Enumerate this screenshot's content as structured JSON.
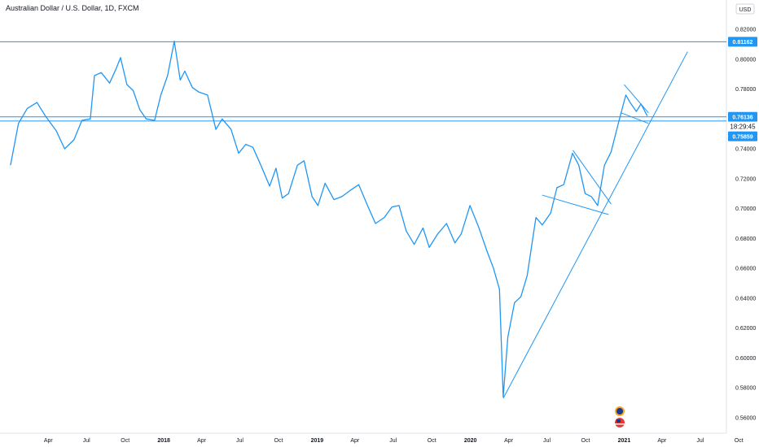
{
  "chart_data": {
    "type": "line",
    "title": "Australian Dollar / U.S. Dollar, 1D, FXCM",
    "currency": "USD",
    "colors": {
      "line": "#2196f3",
      "badge": "#2196f3",
      "axis_text": "#131722",
      "grid": "#e0e3eb"
    },
    "y_ticks": [
      "0.82000",
      "0.80000",
      "0.78000",
      "0.76000",
      "0.74000",
      "0.72000",
      "0.70000",
      "0.68000",
      "0.66000",
      "0.64000",
      "0.62000",
      "0.60000",
      "0.58000",
      "0.56000"
    ],
    "x_ticks": [
      {
        "label": "Apr",
        "x": "2017-04-01"
      },
      {
        "label": "Jul",
        "x": "2017-07-01"
      },
      {
        "label": "Oct",
        "x": "2017-10-01"
      },
      {
        "label": "2018",
        "x": "2018-01-01"
      },
      {
        "label": "Apr",
        "x": "2018-04-01"
      },
      {
        "label": "Jul",
        "x": "2018-07-01"
      },
      {
        "label": "Oct",
        "x": "2018-10-01"
      },
      {
        "label": "2019",
        "x": "2019-01-01"
      },
      {
        "label": "Apr",
        "x": "2019-04-01"
      },
      {
        "label": "Jul",
        "x": "2019-07-01"
      },
      {
        "label": "Oct",
        "x": "2019-10-01"
      },
      {
        "label": "2020",
        "x": "2020-01-01"
      },
      {
        "label": "Apr",
        "x": "2020-04-01"
      },
      {
        "label": "Jul",
        "x": "2020-07-01"
      },
      {
        "label": "Oct",
        "x": "2020-10-01"
      },
      {
        "label": "2021",
        "x": "2021-01-01"
      },
      {
        "label": "Apr",
        "x": "2021-04-01"
      },
      {
        "label": "Jul",
        "x": "2021-07-01"
      },
      {
        "label": "Oct",
        "x": "2021-10-01"
      }
    ],
    "ylim": [
      0.558,
      0.825
    ],
    "series": [
      {
        "values": [
          [
            "2017-01-01",
            0.729
          ],
          [
            "2017-01-20",
            0.757
          ],
          [
            "2017-02-10",
            0.767
          ],
          [
            "2017-03-05",
            0.771
          ],
          [
            "2017-03-25",
            0.762
          ],
          [
            "2017-04-20",
            0.752
          ],
          [
            "2017-05-10",
            0.74
          ],
          [
            "2017-06-01",
            0.746
          ],
          [
            "2017-06-20",
            0.759
          ],
          [
            "2017-07-10",
            0.76
          ],
          [
            "2017-07-20",
            0.789
          ],
          [
            "2017-08-05",
            0.791
          ],
          [
            "2017-08-25",
            0.784
          ],
          [
            "2017-09-10",
            0.794
          ],
          [
            "2017-09-20",
            0.801
          ],
          [
            "2017-10-05",
            0.783
          ],
          [
            "2017-10-20",
            0.779
          ],
          [
            "2017-11-05",
            0.766
          ],
          [
            "2017-11-20",
            0.76
          ],
          [
            "2017-12-10",
            0.759
          ],
          [
            "2017-12-25",
            0.776
          ],
          [
            "2018-01-10",
            0.789
          ],
          [
            "2018-01-26",
            0.812
          ],
          [
            "2018-02-09",
            0.786
          ],
          [
            "2018-02-20",
            0.792
          ],
          [
            "2018-03-10",
            0.781
          ],
          [
            "2018-03-25",
            0.778
          ],
          [
            "2018-04-15",
            0.776
          ],
          [
            "2018-05-05",
            0.753
          ],
          [
            "2018-05-20",
            0.76
          ],
          [
            "2018-06-10",
            0.753
          ],
          [
            "2018-06-28",
            0.737
          ],
          [
            "2018-07-15",
            0.743
          ],
          [
            "2018-08-01",
            0.741
          ],
          [
            "2018-08-20",
            0.729
          ],
          [
            "2018-09-10",
            0.715
          ],
          [
            "2018-09-25",
            0.727
          ],
          [
            "2018-10-10",
            0.707
          ],
          [
            "2018-10-25",
            0.71
          ],
          [
            "2018-11-15",
            0.729
          ],
          [
            "2018-12-01",
            0.732
          ],
          [
            "2018-12-20",
            0.708
          ],
          [
            "2019-01-03",
            0.702
          ],
          [
            "2019-01-20",
            0.717
          ],
          [
            "2019-02-10",
            0.706
          ],
          [
            "2019-03-01",
            0.708
          ],
          [
            "2019-03-20",
            0.712
          ],
          [
            "2019-04-10",
            0.716
          ],
          [
            "2019-05-01",
            0.702
          ],
          [
            "2019-05-20",
            0.69
          ],
          [
            "2019-06-10",
            0.694
          ],
          [
            "2019-06-28",
            0.701
          ],
          [
            "2019-07-15",
            0.702
          ],
          [
            "2019-08-01",
            0.685
          ],
          [
            "2019-08-20",
            0.676
          ],
          [
            "2019-09-10",
            0.687
          ],
          [
            "2019-09-25",
            0.674
          ],
          [
            "2019-10-15",
            0.683
          ],
          [
            "2019-11-05",
            0.69
          ],
          [
            "2019-11-25",
            0.677
          ],
          [
            "2019-12-10",
            0.683
          ],
          [
            "2019-12-31",
            0.702
          ],
          [
            "2020-01-20",
            0.688
          ],
          [
            "2020-02-10",
            0.671
          ],
          [
            "2020-02-25",
            0.66
          ],
          [
            "2020-03-10",
            0.646
          ],
          [
            "2020-03-19",
            0.574
          ],
          [
            "2020-03-30",
            0.614
          ],
          [
            "2020-04-15",
            0.637
          ],
          [
            "2020-04-30",
            0.641
          ],
          [
            "2020-05-15",
            0.655
          ],
          [
            "2020-06-05",
            0.694
          ],
          [
            "2020-06-20",
            0.689
          ],
          [
            "2020-07-10",
            0.697
          ],
          [
            "2020-07-25",
            0.714
          ],
          [
            "2020-08-10",
            0.716
          ],
          [
            "2020-08-31",
            0.737
          ],
          [
            "2020-09-15",
            0.729
          ],
          [
            "2020-09-30",
            0.71
          ],
          [
            "2020-10-15",
            0.708
          ],
          [
            "2020-10-30",
            0.702
          ],
          [
            "2020-11-15",
            0.729
          ],
          [
            "2020-12-01",
            0.738
          ],
          [
            "2020-12-20",
            0.759
          ],
          [
            "2021-01-05",
            0.776
          ],
          [
            "2021-01-15",
            0.771
          ],
          [
            "2021-01-30",
            0.765
          ],
          [
            "2021-02-10",
            0.77
          ],
          [
            "2021-02-25",
            0.762
          ]
        ]
      }
    ],
    "horizontal_lines": [
      {
        "y": 0.81162,
        "label": "0.81162"
      },
      {
        "y": 0.76136,
        "label": "0.76136"
      },
      {
        "y": 0.75859,
        "label": "0.75859"
      }
    ],
    "current_time_label": "18:29:45",
    "trendlines": [
      {
        "x1": "2020-03-19",
        "y1": 0.573,
        "x2": "2021-06-01",
        "y2": 0.805
      },
      {
        "x1": "2020-09-01",
        "y1": 0.739,
        "x2": "2020-12-01",
        "y2": 0.703
      },
      {
        "x1": "2020-06-20",
        "y1": 0.709,
        "x2": "2020-11-25",
        "y2": 0.696
      },
      {
        "x1": "2021-01-01",
        "y1": 0.783,
        "x2": "2021-02-28",
        "y2": 0.764
      },
      {
        "x1": "2020-12-25",
        "y1": 0.764,
        "x2": "2021-02-28",
        "y2": 0.757
      }
    ],
    "grid": false,
    "legend": "none"
  }
}
